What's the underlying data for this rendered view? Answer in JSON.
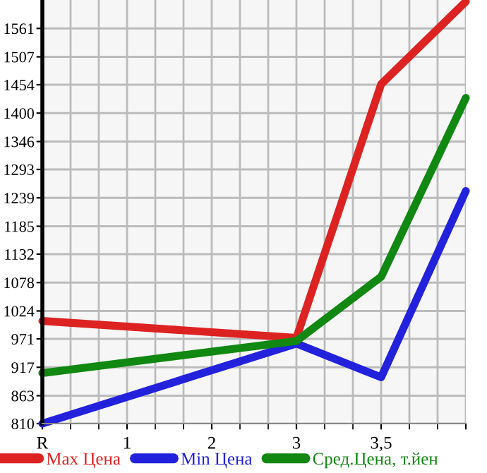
{
  "chart_data": {
    "type": "line",
    "categories": [
      "R",
      "1",
      "2",
      "3",
      "3,5",
      null
    ],
    "series": [
      {
        "name": "Max Цена",
        "color": "#dd2222",
        "values": [
          1005,
          null,
          null,
          973,
          1455,
          1612
        ]
      },
      {
        "name": "Min Цена",
        "color": "#2222dd",
        "values": [
          810,
          null,
          null,
          962,
          898,
          1252
        ]
      },
      {
        "name": "Сред.Цена, т.йен",
        "color": "#118811",
        "values": [
          906,
          null,
          null,
          967,
          1089,
          1429
        ]
      }
    ],
    "ylim": [
      810,
      1615
    ],
    "yticks": [
      810,
      863,
      917,
      971,
      1024,
      1078,
      1132,
      1185,
      1239,
      1293,
      1346,
      1400,
      1454,
      1507,
      1561
    ],
    "grid": true,
    "legend": "bottom",
    "marker": "none",
    "line_style": "solid"
  }
}
